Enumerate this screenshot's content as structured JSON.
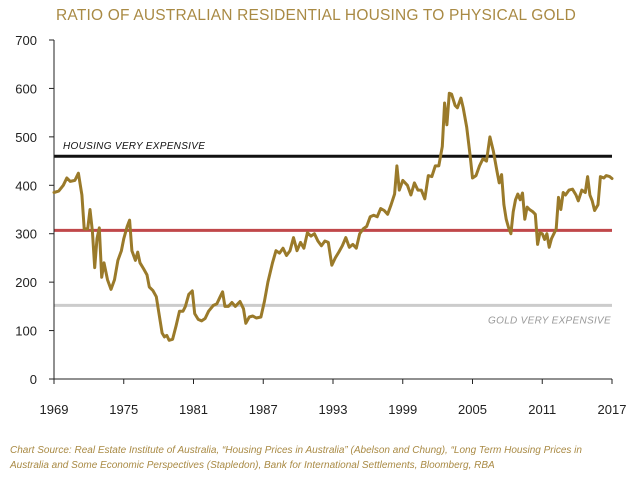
{
  "chart_data": {
    "type": "line",
    "title": "RATIO OF AUSTRALIAN RESIDENTIAL HOUSING TO PHYSICAL GOLD",
    "xlabel": "",
    "ylabel": "",
    "xlim": [
      1969,
      2017
    ],
    "ylim": [
      0,
      700
    ],
    "xticks": [
      "1969",
      "1975",
      "1981",
      "1987",
      "1993",
      "1999",
      "2005",
      "2011",
      "2017"
    ],
    "yticks": [
      "0",
      "100",
      "200",
      "300",
      "400",
      "500",
      "600",
      "700"
    ],
    "grid": false,
    "series": [
      {
        "color": "#9a7a2a",
        "points": [
          [
            1969.0,
            385
          ],
          [
            1969.4,
            388
          ],
          [
            1969.8,
            400
          ],
          [
            1970.1,
            415
          ],
          [
            1970.4,
            408
          ],
          [
            1970.8,
            410
          ],
          [
            1971.1,
            425
          ],
          [
            1971.4,
            380
          ],
          [
            1971.6,
            310
          ],
          [
            1971.9,
            310
          ],
          [
            1972.1,
            350
          ],
          [
            1972.3,
            305
          ],
          [
            1972.5,
            230
          ],
          [
            1972.7,
            290
          ],
          [
            1972.9,
            312
          ],
          [
            1973.1,
            210
          ],
          [
            1973.3,
            240
          ],
          [
            1973.6,
            205
          ],
          [
            1973.9,
            185
          ],
          [
            1974.2,
            205
          ],
          [
            1974.5,
            245
          ],
          [
            1974.8,
            265
          ],
          [
            1975.0,
            290
          ],
          [
            1975.3,
            315
          ],
          [
            1975.5,
            328
          ],
          [
            1975.7,
            265
          ],
          [
            1976.0,
            245
          ],
          [
            1976.2,
            262
          ],
          [
            1976.4,
            240
          ],
          [
            1976.7,
            228
          ],
          [
            1977.0,
            215
          ],
          [
            1977.2,
            190
          ],
          [
            1977.5,
            183
          ],
          [
            1977.8,
            170
          ],
          [
            1978.0,
            140
          ],
          [
            1978.3,
            95
          ],
          [
            1978.5,
            87
          ],
          [
            1978.7,
            90
          ],
          [
            1978.9,
            80
          ],
          [
            1979.2,
            82
          ],
          [
            1979.5,
            110
          ],
          [
            1979.8,
            140
          ],
          [
            1980.1,
            140
          ],
          [
            1980.3,
            150
          ],
          [
            1980.6,
            175
          ],
          [
            1980.9,
            182
          ],
          [
            1981.1,
            135
          ],
          [
            1981.4,
            123
          ],
          [
            1981.7,
            120
          ],
          [
            1982.0,
            125
          ],
          [
            1982.3,
            140
          ],
          [
            1982.7,
            152
          ],
          [
            1983.0,
            155
          ],
          [
            1983.3,
            170
          ],
          [
            1983.5,
            180
          ],
          [
            1983.7,
            150
          ],
          [
            1984.0,
            150
          ],
          [
            1984.3,
            158
          ],
          [
            1984.6,
            150
          ],
          [
            1985.0,
            160
          ],
          [
            1985.3,
            145
          ],
          [
            1985.5,
            115
          ],
          [
            1985.8,
            128
          ],
          [
            1986.1,
            130
          ],
          [
            1986.4,
            126
          ],
          [
            1986.8,
            128
          ],
          [
            1987.1,
            160
          ],
          [
            1987.4,
            200
          ],
          [
            1987.8,
            240
          ],
          [
            1988.1,
            265
          ],
          [
            1988.4,
            260
          ],
          [
            1988.7,
            270
          ],
          [
            1989.0,
            255
          ],
          [
            1989.3,
            265
          ],
          [
            1989.6,
            292
          ],
          [
            1989.9,
            265
          ],
          [
            1990.2,
            282
          ],
          [
            1990.5,
            270
          ],
          [
            1990.8,
            302
          ],
          [
            1991.1,
            295
          ],
          [
            1991.4,
            300
          ],
          [
            1991.7,
            285
          ],
          [
            1992.0,
            275
          ],
          [
            1992.3,
            285
          ],
          [
            1992.6,
            282
          ],
          [
            1992.9,
            235
          ],
          [
            1993.2,
            250
          ],
          [
            1993.5,
            262
          ],
          [
            1993.8,
            275
          ],
          [
            1994.1,
            292
          ],
          [
            1994.4,
            272
          ],
          [
            1994.7,
            278
          ],
          [
            1995.0,
            270
          ],
          [
            1995.3,
            300
          ],
          [
            1995.6,
            310
          ],
          [
            1995.9,
            315
          ],
          [
            1996.2,
            335
          ],
          [
            1996.5,
            338
          ],
          [
            1996.8,
            335
          ],
          [
            1997.1,
            352
          ],
          [
            1997.4,
            348
          ],
          [
            1997.7,
            340
          ],
          [
            1998.0,
            360
          ],
          [
            1998.3,
            382
          ],
          [
            1998.5,
            440
          ],
          [
            1998.7,
            390
          ],
          [
            1999.0,
            410
          ],
          [
            1999.4,
            400
          ],
          [
            1999.7,
            380
          ],
          [
            2000.0,
            405
          ],
          [
            2000.3,
            390
          ],
          [
            2000.6,
            390
          ],
          [
            2000.9,
            372
          ],
          [
            2001.2,
            420
          ],
          [
            2001.5,
            418
          ],
          [
            2001.8,
            440
          ],
          [
            2002.1,
            440
          ],
          [
            2002.4,
            480
          ],
          [
            2002.6,
            570
          ],
          [
            2002.8,
            525
          ],
          [
            2003.0,
            590
          ],
          [
            2003.2,
            588
          ],
          [
            2003.5,
            565
          ],
          [
            2003.7,
            560
          ],
          [
            2004.0,
            580
          ],
          [
            2004.2,
            560
          ],
          [
            2004.5,
            520
          ],
          [
            2004.8,
            460
          ],
          [
            2005.0,
            415
          ],
          [
            2005.3,
            420
          ],
          [
            2005.6,
            440
          ],
          [
            2005.9,
            455
          ],
          [
            2006.2,
            450
          ],
          [
            2006.5,
            500
          ],
          [
            2006.8,
            470
          ],
          [
            2007.1,
            430
          ],
          [
            2007.3,
            405
          ],
          [
            2007.5,
            422
          ],
          [
            2007.7,
            360
          ],
          [
            2007.9,
            330
          ],
          [
            2008.1,
            313
          ],
          [
            2008.3,
            300
          ],
          [
            2008.5,
            345
          ],
          [
            2008.7,
            370
          ],
          [
            2008.9,
            382
          ],
          [
            2009.1,
            370
          ],
          [
            2009.3,
            384
          ],
          [
            2009.5,
            330
          ],
          [
            2009.7,
            355
          ],
          [
            2009.9,
            350
          ],
          [
            2010.2,
            345
          ],
          [
            2010.4,
            340
          ],
          [
            2010.6,
            278
          ],
          [
            2010.8,
            302
          ],
          [
            2011.0,
            300
          ],
          [
            2011.2,
            288
          ],
          [
            2011.4,
            300
          ],
          [
            2011.6,
            272
          ],
          [
            2011.8,
            290
          ],
          [
            2012.0,
            300
          ],
          [
            2012.2,
            310
          ],
          [
            2012.4,
            375
          ],
          [
            2012.6,
            350
          ],
          [
            2012.8,
            385
          ],
          [
            2013.0,
            380
          ],
          [
            2013.3,
            390
          ],
          [
            2013.6,
            392
          ],
          [
            2013.9,
            380
          ],
          [
            2014.1,
            368
          ],
          [
            2014.4,
            390
          ],
          [
            2014.7,
            385
          ],
          [
            2014.9,
            418
          ],
          [
            2015.1,
            380
          ],
          [
            2015.3,
            368
          ],
          [
            2015.5,
            348
          ],
          [
            2015.8,
            360
          ],
          [
            2016.0,
            418
          ],
          [
            2016.3,
            415
          ],
          [
            2016.5,
            420
          ],
          [
            2016.8,
            418
          ],
          [
            2017.0,
            414
          ]
        ]
      }
    ],
    "reference_lines": [
      {
        "label": "HOUSING VERY EXPENSIVE",
        "value": 460,
        "color": "#111111"
      },
      {
        "label": "",
        "value": 307,
        "color": "#c0474a"
      },
      {
        "label": "GOLD VERY EXPENSIVE",
        "value": 152,
        "color": "#cccccc"
      }
    ]
  },
  "source_note": "Chart Source: Real Estate Institute of Australia, “Housing Prices in Australia” (Abelson and Chung), “Long Term Housing Prices in Australia and Some Economic Perspectives (Stapledon), Bank for International Settlements, Bloomberg, RBA"
}
